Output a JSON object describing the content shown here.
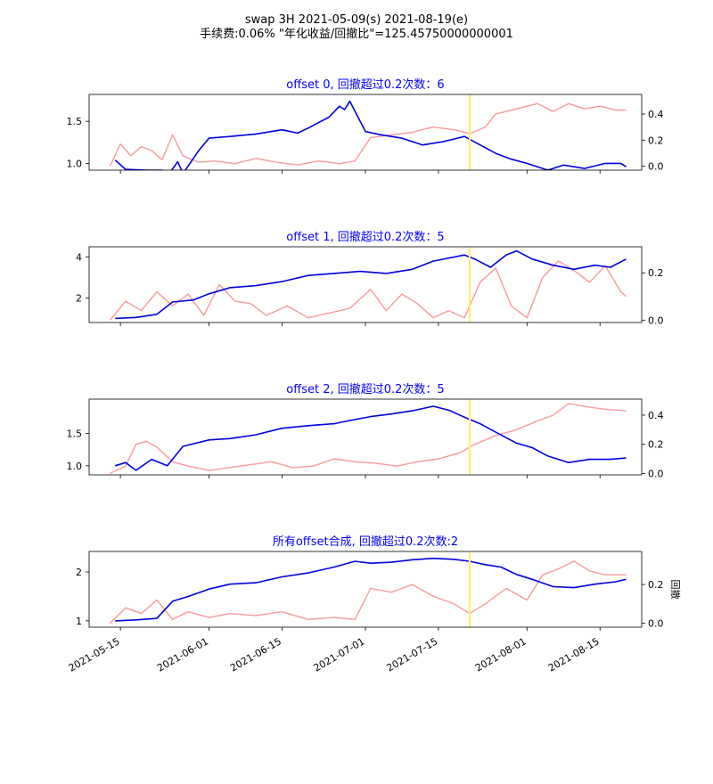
{
  "figure": {
    "title_line1": "swap 3H 2021-05-09(s) 2021-08-19(e)",
    "title_line2": "手续费:0.06% \"年化收益/回撤比\"=125.45750000000001"
  },
  "colors": {
    "equity": "#0000dd",
    "drawdown": "#f89a9a",
    "marker": "#fff06a",
    "panel_title": "#0000ff"
  },
  "x_axis": {
    "tick_labels": [
      "2021-05-15",
      "2021-06-01",
      "2021-06-15",
      "2021-07-01",
      "2021-07-15",
      "2021-08-01",
      "2021-08-15"
    ],
    "tick_dates": [
      "2021-05-15",
      "2021-06-01",
      "2021-06-15",
      "2021-07-01",
      "2021-07-15",
      "2021-08-01",
      "2021-08-15"
    ],
    "range": [
      "2021-05-09",
      "2021-08-23"
    ],
    "marker_date": "2021-07-21"
  },
  "chart_data": [
    {
      "type": "line",
      "title": "offset 0, 回撤超过0.2次数：6",
      "left_ylim": [
        0.92,
        1.82
      ],
      "left_ticks": [
        1.0,
        1.5
      ],
      "left_tick_labels": [
        "1.0",
        "1.5"
      ],
      "right_ylim": [
        -0.03,
        0.55
      ],
      "right_ticks": [
        0.0,
        0.2,
        0.4
      ],
      "right_tick_labels": [
        "0.0",
        "0.2",
        "0.4"
      ],
      "right_ylabel": "",
      "series": [
        {
          "axis": "left",
          "color": "equity",
          "x": [
            "2021-05-14",
            "2021-05-16",
            "2021-05-20",
            "2021-05-23",
            "2021-05-24",
            "2021-05-26",
            "2021-05-27",
            "2021-05-30",
            "2021-06-01",
            "2021-06-05",
            "2021-06-10",
            "2021-06-15",
            "2021-06-18",
            "2021-06-20",
            "2021-06-24",
            "2021-06-26",
            "2021-06-27",
            "2021-06-28",
            "2021-06-30",
            "2021-07-01",
            "2021-07-04",
            "2021-07-08",
            "2021-07-12",
            "2021-07-16",
            "2021-07-20",
            "2021-07-23",
            "2021-07-26",
            "2021-07-29",
            "2021-08-01",
            "2021-08-05",
            "2021-08-08",
            "2021-08-12",
            "2021-08-16",
            "2021-08-19",
            "2021-08-20"
          ],
          "values": [
            1.04,
            0.93,
            0.92,
            0.92,
            0.85,
            1.02,
            0.88,
            1.15,
            1.3,
            1.32,
            1.35,
            1.4,
            1.36,
            1.42,
            1.55,
            1.68,
            1.64,
            1.74,
            1.5,
            1.38,
            1.34,
            1.3,
            1.22,
            1.26,
            1.32,
            1.22,
            1.12,
            1.05,
            1.0,
            0.92,
            0.98,
            0.94,
            1.0,
            1.0,
            0.96
          ]
        },
        {
          "axis": "right",
          "color": "drawdown",
          "x": [
            "2021-05-13",
            "2021-05-15",
            "2021-05-17",
            "2021-05-19",
            "2021-05-21",
            "2021-05-23",
            "2021-05-25",
            "2021-05-27",
            "2021-05-30",
            "2021-06-02",
            "2021-06-06",
            "2021-06-10",
            "2021-06-14",
            "2021-06-18",
            "2021-06-22",
            "2021-06-26",
            "2021-06-29",
            "2021-07-02",
            "2021-07-06",
            "2021-07-10",
            "2021-07-14",
            "2021-07-18",
            "2021-07-21",
            "2021-07-24",
            "2021-07-26",
            "2021-07-28",
            "2021-07-31",
            "2021-08-03",
            "2021-08-06",
            "2021-08-09",
            "2021-08-12",
            "2021-08-15",
            "2021-08-18",
            "2021-08-20"
          ],
          "values": [
            0.0,
            0.17,
            0.08,
            0.15,
            0.12,
            0.05,
            0.24,
            0.08,
            0.03,
            0.04,
            0.02,
            0.06,
            0.03,
            0.01,
            0.04,
            0.02,
            0.04,
            0.22,
            0.24,
            0.26,
            0.3,
            0.28,
            0.25,
            0.3,
            0.4,
            0.42,
            0.45,
            0.48,
            0.42,
            0.48,
            0.44,
            0.46,
            0.43,
            0.43
          ]
        }
      ]
    },
    {
      "type": "line",
      "title": "offset 1, 回撤超过0.2次数：5",
      "left_ylim": [
        0.8,
        4.5
      ],
      "left_ticks": [
        2,
        4
      ],
      "left_tick_labels": [
        "2",
        "4"
      ],
      "right_ylim": [
        -0.01,
        0.31
      ],
      "right_ticks": [
        0.0,
        0.2
      ],
      "right_tick_labels": [
        "0.0",
        "0.2"
      ],
      "right_ylabel": "",
      "series": [
        {
          "axis": "left",
          "color": "equity",
          "x": [
            "2021-05-14",
            "2021-05-18",
            "2021-05-22",
            "2021-05-25",
            "2021-05-29",
            "2021-06-01",
            "2021-06-05",
            "2021-06-10",
            "2021-06-15",
            "2021-06-20",
            "2021-06-25",
            "2021-06-30",
            "2021-07-05",
            "2021-07-10",
            "2021-07-14",
            "2021-07-18",
            "2021-07-20",
            "2021-07-22",
            "2021-07-25",
            "2021-07-28",
            "2021-07-30",
            "2021-08-02",
            "2021-08-06",
            "2021-08-10",
            "2021-08-14",
            "2021-08-17",
            "2021-08-20"
          ],
          "values": [
            1.0,
            1.05,
            1.2,
            1.8,
            1.9,
            2.2,
            2.5,
            2.6,
            2.8,
            3.1,
            3.2,
            3.3,
            3.2,
            3.4,
            3.8,
            4.0,
            4.1,
            3.9,
            3.5,
            4.1,
            4.3,
            3.9,
            3.6,
            3.4,
            3.6,
            3.5,
            3.9
          ]
        },
        {
          "axis": "right",
          "color": "drawdown",
          "x": [
            "2021-05-13",
            "2021-05-16",
            "2021-05-19",
            "2021-05-22",
            "2021-05-25",
            "2021-05-28",
            "2021-05-31",
            "2021-06-03",
            "2021-06-06",
            "2021-06-09",
            "2021-06-12",
            "2021-06-16",
            "2021-06-20",
            "2021-06-24",
            "2021-06-28",
            "2021-07-02",
            "2021-07-05",
            "2021-07-08",
            "2021-07-11",
            "2021-07-14",
            "2021-07-17",
            "2021-07-20",
            "2021-07-23",
            "2021-07-26",
            "2021-07-29",
            "2021-08-01",
            "2021-08-04",
            "2021-08-07",
            "2021-08-10",
            "2021-08-13",
            "2021-08-16",
            "2021-08-19",
            "2021-08-20"
          ],
          "values": [
            0.0,
            0.08,
            0.04,
            0.12,
            0.06,
            0.11,
            0.02,
            0.15,
            0.08,
            0.07,
            0.02,
            0.06,
            0.01,
            0.03,
            0.05,
            0.13,
            0.04,
            0.11,
            0.07,
            0.01,
            0.04,
            0.01,
            0.16,
            0.22,
            0.06,
            0.01,
            0.18,
            0.25,
            0.21,
            0.16,
            0.23,
            0.12,
            0.1
          ]
        }
      ]
    },
    {
      "type": "line",
      "title": "offset 2, 回撤超过0.2次数：5",
      "left_ylim": [
        0.86,
        2.03
      ],
      "left_ticks": [
        1.0,
        1.5
      ],
      "left_tick_labels": [
        "1.0",
        "1.5"
      ],
      "right_ylim": [
        -0.01,
        0.51
      ],
      "right_ticks": [
        0.0,
        0.2,
        0.4
      ],
      "right_tick_labels": [
        "0.0",
        "0.2",
        "0.4"
      ],
      "right_ylabel": "",
      "series": [
        {
          "axis": "left",
          "color": "equity",
          "x": [
            "2021-05-14",
            "2021-05-16",
            "2021-05-18",
            "2021-05-21",
            "2021-05-24",
            "2021-05-27",
            "2021-06-01",
            "2021-06-05",
            "2021-06-10",
            "2021-06-15",
            "2021-06-20",
            "2021-06-25",
            "2021-06-28",
            "2021-07-02",
            "2021-07-06",
            "2021-07-10",
            "2021-07-14",
            "2021-07-17",
            "2021-07-20",
            "2021-07-23",
            "2021-07-26",
            "2021-07-30",
            "2021-08-02",
            "2021-08-05",
            "2021-08-09",
            "2021-08-13",
            "2021-08-17",
            "2021-08-20"
          ],
          "values": [
            1.0,
            1.05,
            0.93,
            1.1,
            1.0,
            1.3,
            1.4,
            1.42,
            1.48,
            1.58,
            1.62,
            1.65,
            1.7,
            1.76,
            1.8,
            1.85,
            1.92,
            1.86,
            1.75,
            1.65,
            1.52,
            1.35,
            1.28,
            1.15,
            1.05,
            1.1,
            1.1,
            1.12
          ]
        },
        {
          "axis": "right",
          "color": "drawdown",
          "x": [
            "2021-05-13",
            "2021-05-16",
            "2021-05-18",
            "2021-05-20",
            "2021-05-22",
            "2021-05-25",
            "2021-05-28",
            "2021-06-01",
            "2021-06-05",
            "2021-06-09",
            "2021-06-13",
            "2021-06-17",
            "2021-06-21",
            "2021-06-25",
            "2021-06-29",
            "2021-07-03",
            "2021-07-07",
            "2021-07-11",
            "2021-07-15",
            "2021-07-19",
            "2021-07-22",
            "2021-07-26",
            "2021-07-30",
            "2021-08-03",
            "2021-08-06",
            "2021-08-09",
            "2021-08-12",
            "2021-08-16",
            "2021-08-20"
          ],
          "values": [
            0.0,
            0.05,
            0.2,
            0.22,
            0.18,
            0.08,
            0.05,
            0.02,
            0.04,
            0.06,
            0.08,
            0.04,
            0.05,
            0.1,
            0.08,
            0.07,
            0.05,
            0.08,
            0.1,
            0.14,
            0.2,
            0.26,
            0.3,
            0.36,
            0.4,
            0.48,
            0.46,
            0.44,
            0.43
          ]
        }
      ]
    },
    {
      "type": "line",
      "title": "所有offset合成, 回撤超过0.2次数:2",
      "left_ylim": [
        0.87,
        2.42
      ],
      "left_ticks": [
        1,
        2
      ],
      "left_tick_labels": [
        "1",
        "2"
      ],
      "right_ylim": [
        -0.02,
        0.37
      ],
      "right_ticks": [
        0.0,
        0.2
      ],
      "right_tick_labels": [
        "0.0",
        "0.2"
      ],
      "right_ylabel": "回撤",
      "series": [
        {
          "axis": "left",
          "color": "equity",
          "x": [
            "2021-05-14",
            "2021-05-18",
            "2021-05-22",
            "2021-05-25",
            "2021-05-28",
            "2021-06-01",
            "2021-06-05",
            "2021-06-10",
            "2021-06-15",
            "2021-06-20",
            "2021-06-25",
            "2021-06-29",
            "2021-07-02",
            "2021-07-06",
            "2021-07-10",
            "2021-07-14",
            "2021-07-18",
            "2021-07-21",
            "2021-07-24",
            "2021-07-27",
            "2021-07-30",
            "2021-08-02",
            "2021-08-06",
            "2021-08-10",
            "2021-08-14",
            "2021-08-18",
            "2021-08-20"
          ],
          "values": [
            1.0,
            1.02,
            1.05,
            1.4,
            1.5,
            1.65,
            1.75,
            1.78,
            1.9,
            1.98,
            2.1,
            2.22,
            2.18,
            2.2,
            2.25,
            2.28,
            2.26,
            2.22,
            2.15,
            2.1,
            1.95,
            1.85,
            1.7,
            1.68,
            1.75,
            1.8,
            1.85
          ]
        },
        {
          "axis": "right",
          "color": "drawdown",
          "x": [
            "2021-05-13",
            "2021-05-16",
            "2021-05-19",
            "2021-05-22",
            "2021-05-25",
            "2021-05-28",
            "2021-06-01",
            "2021-06-05",
            "2021-06-10",
            "2021-06-15",
            "2021-06-20",
            "2021-06-25",
            "2021-06-29",
            "2021-07-02",
            "2021-07-06",
            "2021-07-10",
            "2021-07-14",
            "2021-07-18",
            "2021-07-21",
            "2021-07-24",
            "2021-07-28",
            "2021-08-01",
            "2021-08-04",
            "2021-08-07",
            "2021-08-10",
            "2021-08-13",
            "2021-08-16",
            "2021-08-20"
          ],
          "values": [
            0.0,
            0.08,
            0.05,
            0.12,
            0.02,
            0.06,
            0.03,
            0.05,
            0.04,
            0.06,
            0.02,
            0.03,
            0.02,
            0.18,
            0.16,
            0.2,
            0.14,
            0.1,
            0.05,
            0.1,
            0.18,
            0.12,
            0.25,
            0.28,
            0.32,
            0.27,
            0.25,
            0.25
          ]
        }
      ]
    }
  ]
}
